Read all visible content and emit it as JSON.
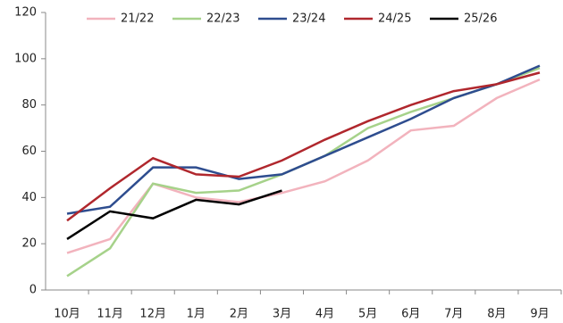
{
  "chart_data": {
    "type": "line",
    "categories": [
      "10月",
      "11月",
      "12月",
      "1月",
      "2月",
      "3月",
      "4月",
      "5月",
      "6月",
      "7月",
      "8月",
      "9月"
    ],
    "series": [
      {
        "name": "21/22",
        "color": "#f2b3bd",
        "values": [
          16,
          22,
          46,
          40,
          38,
          42,
          47,
          56,
          69,
          71,
          83,
          91
        ]
      },
      {
        "name": "22/23",
        "color": "#a6d28a",
        "values": [
          6,
          18,
          46,
          42,
          43,
          50,
          58,
          70,
          77,
          83,
          89,
          96
        ]
      },
      {
        "name": "23/24",
        "color": "#2e4d8f",
        "values": [
          33,
          36,
          53,
          53,
          48,
          50,
          58,
          66,
          74,
          83,
          89,
          97
        ]
      },
      {
        "name": "24/25",
        "color": "#b0272d",
        "values": [
          30,
          44,
          57,
          50,
          49,
          56,
          65,
          73,
          80,
          86,
          89,
          94
        ]
      },
      {
        "name": "25/26",
        "color": "#000000",
        "values": [
          22,
          34,
          31,
          39,
          37,
          43,
          null,
          null,
          null,
          null,
          null,
          null
        ]
      }
    ],
    "ylim": [
      0,
      120
    ],
    "yticks": [
      0,
      20,
      40,
      60,
      80,
      100,
      120
    ]
  }
}
